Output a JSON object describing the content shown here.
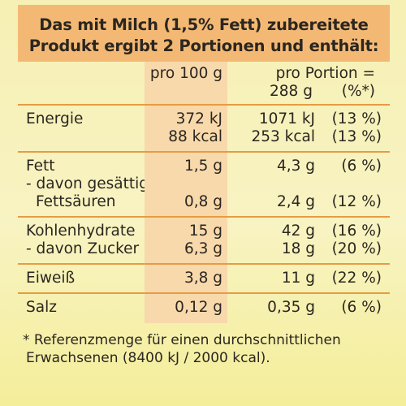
{
  "header": {
    "line1": "Das mit Milch (1,5% Fett) zubereitete",
    "line2": "Produkt ergibt 2 Portionen und enthält:"
  },
  "columns": {
    "per100": "pro 100 g",
    "perPortion": "pro Portion =",
    "portionSize": "288 g",
    "percent": "(%*)"
  },
  "rows": {
    "energy": {
      "label": "Energie",
      "per100": [
        "372 kJ",
        "88 kcal"
      ],
      "portion": [
        {
          "value": "1071 kJ",
          "pct": "(13 %)"
        },
        {
          "value": "253 kcal",
          "pct": "(13 %)"
        }
      ]
    },
    "fat": {
      "label": "Fett",
      "sub1": "- davon gesättigte",
      "sub2": "Fettsäuren",
      "per100": "1,5 g",
      "per100_sub": "0,8 g",
      "portion": {
        "value": "4,3 g",
        "pct": "(6 %)"
      },
      "portion_sub": {
        "value": "2,4 g",
        "pct": "(12 %)"
      }
    },
    "carb": {
      "label": "Kohlenhydrate",
      "sub": "- davon Zucker",
      "per100": "15 g",
      "per100_sub": "6,3 g",
      "portion": {
        "value": "42 g",
        "pct": "(16 %)"
      },
      "portion_sub": {
        "value": "18 g",
        "pct": "(20 %)"
      }
    },
    "protein": {
      "label": "Eiweiß",
      "per100": "3,8 g",
      "portion": {
        "value": "11 g",
        "pct": "(22 %)"
      }
    },
    "salt": {
      "label": "Salz",
      "per100": "0,12 g",
      "portion": {
        "value": "0,35 g",
        "pct": "(6 %)"
      }
    }
  },
  "footnote": {
    "line1": "* Referenzmenge für einen durchschnittlichen",
    "line2": "Erwachsenen (8400 kJ / 2000 kcal)."
  },
  "colors": {
    "header_bg": "#f3b974",
    "column_bg": "#f8d9ab",
    "divider": "#e79b43",
    "page_bg": "#f8f3c2"
  }
}
